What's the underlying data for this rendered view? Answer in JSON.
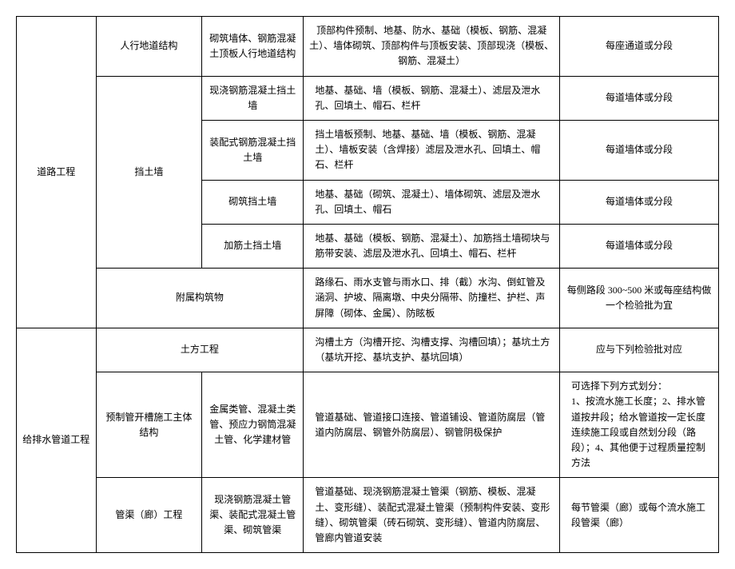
{
  "table": {
    "rows": [
      {
        "col1": {
          "text": "道路工程",
          "rowspan": 6
        },
        "col2": {
          "text": "人行地道结构",
          "colspan": 1
        },
        "col3": {
          "text": "砌筑墙体、钢筋混凝土顶板人行地道结构"
        },
        "col4": {
          "text": "顶部构件预制、地基、防水、基础（模板、钢筋、混凝土）、墙体砌筑、顶部构件与顶板安装、顶部现浇（模板、钢筋、混凝土）",
          "centered": true
        },
        "col5": {
          "text": "每座通道或分段",
          "centered": true
        }
      },
      {
        "col2": {
          "text": "挡土墙",
          "rowspan": 4
        },
        "col3": {
          "text": "现浇钢筋混凝土挡土墙"
        },
        "col4": {
          "text": "地基、基础、墙（模板、钢筋、混凝土）、滤层及泄水孔、回填土、帽石、栏杆"
        },
        "col5": {
          "text": "每道墙体或分段",
          "centered": true
        }
      },
      {
        "col3": {
          "text": "装配式钢筋混凝土挡土墙"
        },
        "col4": {
          "text": "挡土墙板预制、地基、基础、墙（模板、钢筋、混凝土）、墙板安装（含焊接）滤层及泄水孔、回填土、帽石、栏杆"
        },
        "col5": {
          "text": "每道墙体或分段",
          "centered": true
        }
      },
      {
        "col3": {
          "text": "砌筑挡土墙"
        },
        "col4": {
          "text": "地基、基础（砌筑、混凝土）、墙体砌筑、滤层及泄水孔、回填土、帽石"
        },
        "col5": {
          "text": "每道墙体或分段",
          "centered": true
        }
      },
      {
        "col3": {
          "text": "加筋土挡土墙"
        },
        "col4": {
          "text": "地基、基础（模板、钢筋、混凝土）、加筋挡土墙砌块与筋带安装、滤层及泄水孔、回填土、帽石、栏杆"
        },
        "col5": {
          "text": "每道墙体或分段",
          "centered": true
        }
      },
      {
        "col2": {
          "text": "附属构筑物",
          "colspan": 2
        },
        "col4": {
          "text": "路缘石、雨水支管与雨水口、排（截）水沟、倒虹管及涵洞、护坡、隔离墩、中央分隔带、防撞栏、护栏、声屏障（砌体、金属）、防眩板"
        },
        "col5": {
          "text": "每侧路段 300~500 米或每座结构做一个检验批为宜",
          "centered": true
        }
      },
      {
        "col1": {
          "text": "给排水管道工程",
          "rowspan": 3
        },
        "col2": {
          "text": "土方工程",
          "colspan": 2
        },
        "col4": {
          "text": "沟槽土方（沟槽开挖、沟槽支撑、沟槽回填）；基坑土方（基坑开挖、基坑支护、基坑回填）"
        },
        "col5": {
          "text": "应与下列检验批对应",
          "centered": true
        }
      },
      {
        "col2": {
          "text": "预制管开槽施工主体结构"
        },
        "col3": {
          "text": "金属类管、混凝土类管、预应力钢筒混凝土管、化学建材管"
        },
        "col4": {
          "text": "管道基础、管道接口连接、管道铺设、管道防腐层（管道内防腐层、钢管外防腐层）、钢管阴极保护"
        },
        "col5": {
          "text": "可选择下列方式划分：\n1、按流水施工长度；2、排水管道按井段；给水管道按一定长度连续施工段或自然划分段（路段）；4、其他便于过程质量控制方法"
        }
      },
      {
        "col2": {
          "text": "管渠（廊）工程"
        },
        "col3": {
          "text": "现浇钢筋混凝土管渠、装配式混凝土管渠、砌筑管渠"
        },
        "col4": {
          "text": "管道基础、现浇钢筋混凝土管渠（钢筋、模板、混凝土、变形缝）、装配式混凝土管渠（预制构件安装、变形缝）、砌筑管渠（砖石砌筑、变形缝）、管道内防腐层、管廊内管道安装"
        },
        "col5": {
          "text": "每节管渠（廊）或每个流水施工段管渠（廊）"
        }
      }
    ]
  }
}
